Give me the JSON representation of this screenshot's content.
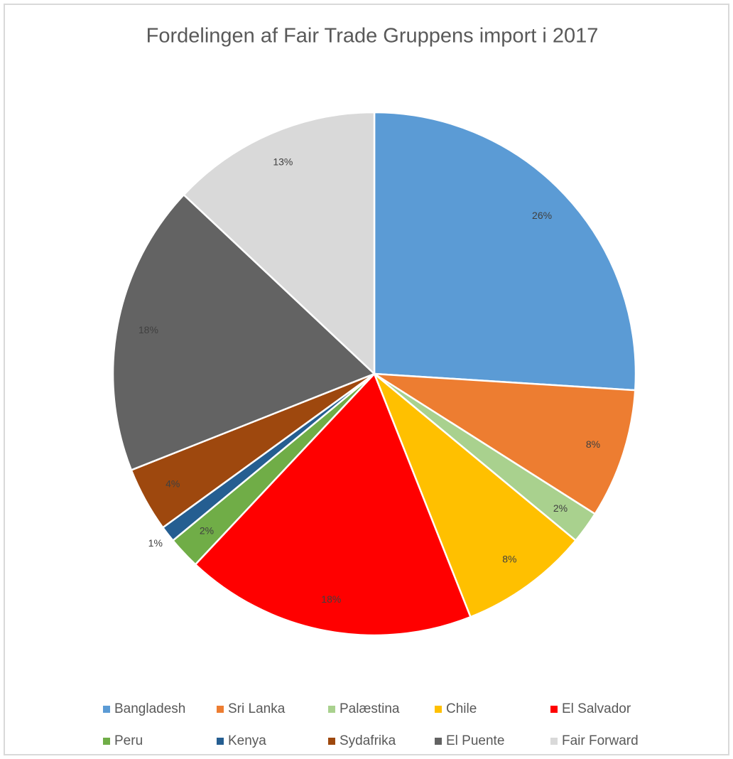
{
  "chart_data": {
    "type": "pie",
    "title": "Fordelingen af Fair Trade Gruppens import i 2017",
    "categories": [
      "Bangladesh",
      "Sri Lanka",
      "Palæstina",
      "Chile",
      "El Salvador",
      "Peru",
      "Kenya",
      "Sydafrika",
      "El Puente",
      "Fair Forward"
    ],
    "values": [
      26,
      8,
      2,
      8,
      18,
      2,
      1,
      4,
      18,
      13
    ],
    "value_labels": [
      "26%",
      "8%",
      "2%",
      "8%",
      "18%",
      "2%",
      "1%",
      "4%",
      "18%",
      "13%"
    ],
    "colors": [
      "#5b9bd5",
      "#ed7d31",
      "#a9d18e",
      "#ffc000",
      "#ff0000",
      "#70ad47",
      "#255e91",
      "#9e480e",
      "#636363",
      "#d9d9d9"
    ],
    "legend": "bottom"
  }
}
